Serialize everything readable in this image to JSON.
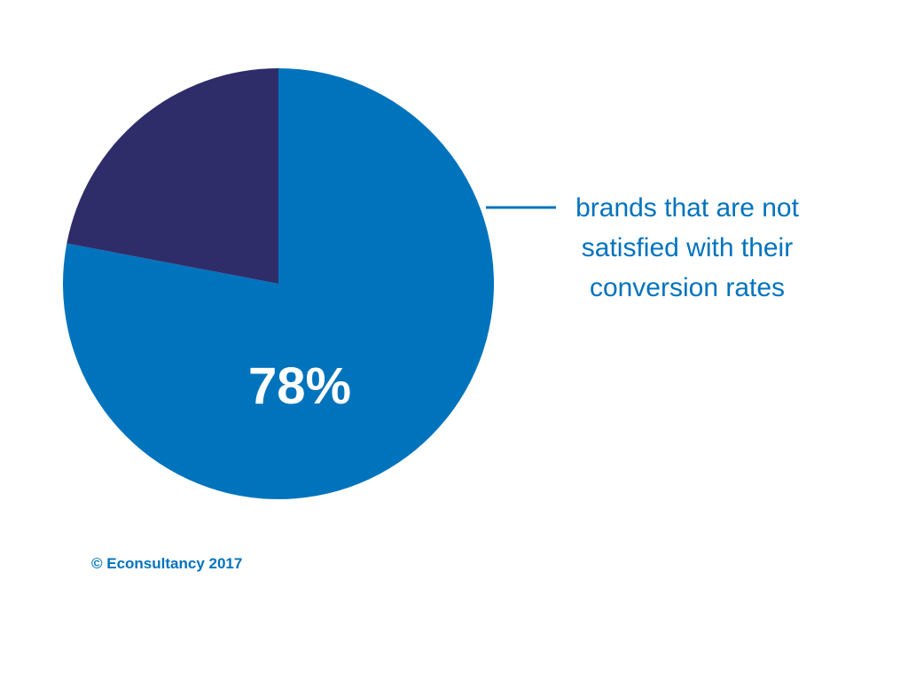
{
  "chart_data": {
    "type": "pie",
    "slices": [
      {
        "value": 78,
        "label": "78%",
        "color": "#0073bd"
      },
      {
        "value": 22,
        "label": "",
        "color": "#2e2d6a"
      }
    ],
    "annotation": {
      "lines": [
        "brands that are not",
        "satisfied with their",
        "conversion rates"
      ],
      "color": "#0073bd"
    }
  },
  "footer": {
    "copyright": "© Econsultancy 2017"
  }
}
